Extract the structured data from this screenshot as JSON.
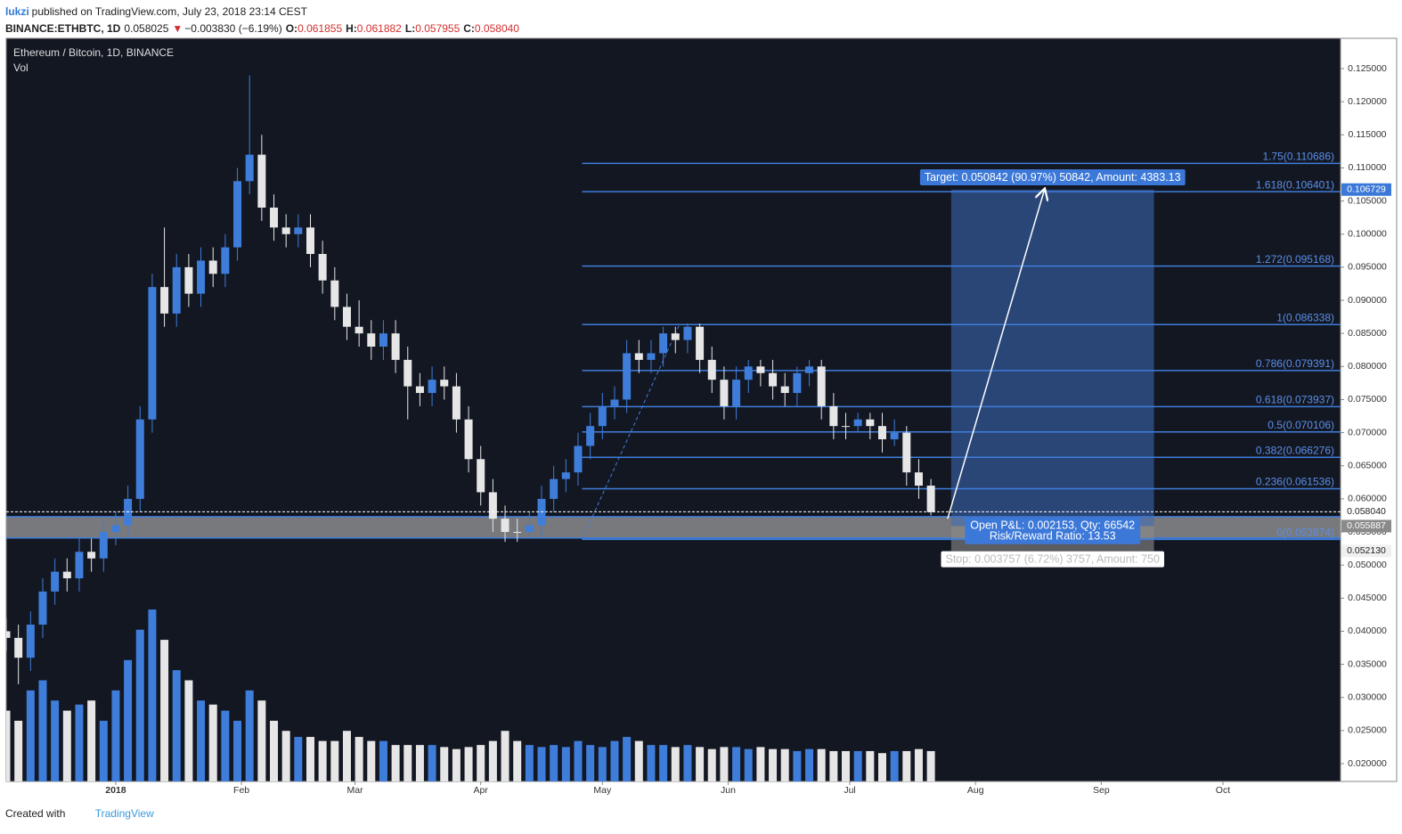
{
  "header": {
    "author": "lukzi",
    "published": "published on TradingView.com, July 23, 2018 23:14 CEST",
    "symbol": "BINANCE:ETHBTC, 1D",
    "price": "0.058025",
    "change": "−0.003830 (−6.19%)",
    "ohlc": [
      {
        "key": "O:",
        "value": "0.061855"
      },
      {
        "key": "H:",
        "value": "0.061882"
      },
      {
        "key": "L:",
        "value": "0.057955"
      },
      {
        "key": "C:",
        "value": "0.058040"
      }
    ]
  },
  "footer": {
    "created": "Created with",
    "brand": "TradingView"
  },
  "chart_data": {
    "type": "candlestick",
    "title": "Ethereum / Bitcoin, 1D, BINANCE",
    "volume_title": "Vol",
    "up_color": "#3f7ddb",
    "down_color": "#e6e6e6",
    "xlim": [
      -27,
      302
    ],
    "xticks": [
      {
        "value": 0,
        "label": "2018"
      },
      {
        "value": 31,
        "label": "Feb"
      },
      {
        "value": 59,
        "label": "Mar"
      },
      {
        "value": 90,
        "label": "Apr"
      },
      {
        "value": 120,
        "label": "May"
      },
      {
        "value": 151,
        "label": "Jun"
      },
      {
        "value": 181,
        "label": "Jul"
      },
      {
        "value": 212,
        "label": "Aug"
      },
      {
        "value": 243,
        "label": "Sep"
      },
      {
        "value": 273,
        "label": "Oct"
      }
    ],
    "ylim": [
      0.01731,
      0.12958
    ],
    "yticks": [
      {
        "value": 0.02,
        "label": "0.020000"
      },
      {
        "value": 0.025,
        "label": "0.025000"
      },
      {
        "value": 0.03,
        "label": "0.030000"
      },
      {
        "value": 0.035,
        "label": "0.035000"
      },
      {
        "value": 0.04,
        "label": "0.040000"
      },
      {
        "value": 0.045,
        "label": "0.045000"
      },
      {
        "value": 0.05,
        "label": "0.050000"
      },
      {
        "value": 0.055,
        "label": "0.055000"
      },
      {
        "value": 0.06,
        "label": "0.060000"
      },
      {
        "value": 0.065,
        "label": "0.065000"
      },
      {
        "value": 0.07,
        "label": "0.070000"
      },
      {
        "value": 0.075,
        "label": "0.075000"
      },
      {
        "value": 0.08,
        "label": "0.080000"
      },
      {
        "value": 0.085,
        "label": "0.085000"
      },
      {
        "value": 0.09,
        "label": "0.090000"
      },
      {
        "value": 0.095,
        "label": "0.095000"
      },
      {
        "value": 0.1,
        "label": "0.100000"
      },
      {
        "value": 0.105,
        "label": "0.105000"
      },
      {
        "value": 0.11,
        "label": "0.110000"
      },
      {
        "value": 0.115,
        "label": "0.115000"
      },
      {
        "value": 0.12,
        "label": "0.120000"
      },
      {
        "value": 0.125,
        "label": "0.125000"
      }
    ],
    "x": [
      -27,
      -24,
      -21,
      -18,
      -15,
      -12,
      -9,
      -6,
      -3,
      0,
      3,
      6,
      9,
      12,
      15,
      18,
      21,
      24,
      27,
      30,
      33,
      36,
      39,
      42,
      45,
      48,
      51,
      54,
      57,
      60,
      63,
      66,
      69,
      72,
      75,
      78,
      81,
      84,
      87,
      90,
      93,
      96,
      99,
      102,
      105,
      108,
      111,
      114,
      117,
      120,
      123,
      126,
      129,
      132,
      135,
      138,
      141,
      144,
      147,
      150,
      153,
      156,
      159,
      162,
      165,
      168,
      171,
      174,
      177,
      180,
      183,
      186,
      189,
      192,
      195,
      198,
      201
    ],
    "open": [
      0.04,
      0.039,
      0.036,
      0.041,
      0.046,
      0.049,
      0.048,
      0.052,
      0.051,
      0.055,
      0.056,
      0.06,
      0.072,
      0.092,
      0.088,
      0.095,
      0.091,
      0.096,
      0.094,
      0.098,
      0.108,
      0.112,
      0.104,
      0.101,
      0.1,
      0.101,
      0.097,
      0.093,
      0.089,
      0.086,
      0.085,
      0.083,
      0.085,
      0.081,
      0.077,
      0.076,
      0.078,
      0.077,
      0.072,
      0.066,
      0.061,
      0.057,
      0.055,
      0.055,
      0.056,
      0.06,
      0.063,
      0.064,
      0.068,
      0.071,
      0.074,
      0.075,
      0.082,
      0.081,
      0.082,
      0.085,
      0.084,
      0.086,
      0.081,
      0.078,
      0.074,
      0.078,
      0.08,
      0.079,
      0.077,
      0.076,
      0.079,
      0.08,
      0.074,
      0.071,
      0.071,
      0.072,
      0.071,
      0.069,
      0.07,
      0.064,
      0.062
    ],
    "high": [
      0.042,
      0.041,
      0.043,
      0.048,
      0.051,
      0.051,
      0.054,
      0.054,
      0.057,
      0.058,
      0.062,
      0.074,
      0.094,
      0.101,
      0.097,
      0.097,
      0.098,
      0.098,
      0.1,
      0.11,
      0.124,
      0.115,
      0.106,
      0.103,
      0.103,
      0.103,
      0.099,
      0.095,
      0.091,
      0.09,
      0.087,
      0.087,
      0.087,
      0.083,
      0.079,
      0.08,
      0.08,
      0.079,
      0.074,
      0.068,
      0.063,
      0.059,
      0.057,
      0.058,
      0.062,
      0.065,
      0.066,
      0.07,
      0.073,
      0.076,
      0.077,
      0.084,
      0.084,
      0.084,
      0.086,
      0.086,
      0.0865,
      0.0865,
      0.083,
      0.08,
      0.08,
      0.081,
      0.081,
      0.081,
      0.079,
      0.08,
      0.081,
      0.081,
      0.076,
      0.073,
      0.073,
      0.073,
      0.073,
      0.072,
      0.071,
      0.066,
      0.063
    ],
    "low": [
      0.037,
      0.032,
      0.034,
      0.039,
      0.044,
      0.046,
      0.046,
      0.049,
      0.049,
      0.053,
      0.054,
      0.058,
      0.07,
      0.086,
      0.086,
      0.089,
      0.089,
      0.092,
      0.092,
      0.096,
      0.106,
      0.102,
      0.099,
      0.098,
      0.098,
      0.095,
      0.091,
      0.087,
      0.084,
      0.083,
      0.081,
      0.081,
      0.079,
      0.072,
      0.074,
      0.074,
      0.075,
      0.07,
      0.064,
      0.059,
      0.055,
      0.0535,
      0.0535,
      0.054,
      0.054,
      0.058,
      0.061,
      0.062,
      0.066,
      0.069,
      0.072,
      0.073,
      0.079,
      0.079,
      0.08,
      0.082,
      0.082,
      0.079,
      0.076,
      0.072,
      0.072,
      0.076,
      0.077,
      0.075,
      0.074,
      0.074,
      0.077,
      0.072,
      0.069,
      0.069,
      0.07,
      0.069,
      0.067,
      0.068,
      0.062,
      0.06,
      0.0575
    ],
    "close": [
      0.039,
      0.036,
      0.041,
      0.046,
      0.049,
      0.048,
      0.052,
      0.051,
      0.055,
      0.056,
      0.06,
      0.072,
      0.092,
      0.088,
      0.095,
      0.091,
      0.096,
      0.094,
      0.098,
      0.108,
      0.112,
      0.104,
      0.101,
      0.1,
      0.101,
      0.097,
      0.093,
      0.089,
      0.086,
      0.085,
      0.083,
      0.085,
      0.081,
      0.077,
      0.076,
      0.078,
      0.077,
      0.072,
      0.066,
      0.061,
      0.057,
      0.055,
      0.055,
      0.056,
      0.06,
      0.063,
      0.064,
      0.068,
      0.071,
      0.074,
      0.075,
      0.082,
      0.081,
      0.082,
      0.085,
      0.084,
      0.086,
      0.081,
      0.078,
      0.074,
      0.078,
      0.08,
      0.079,
      0.077,
      0.076,
      0.079,
      0.08,
      0.074,
      0.071,
      0.071,
      0.072,
      0.071,
      0.069,
      0.07,
      0.064,
      0.062,
      0.058
    ],
    "vlim": [
      0,
      100
    ],
    "volume": [
      35,
      30,
      45,
      50,
      40,
      35,
      38,
      40,
      30,
      45,
      60,
      75,
      85,
      70,
      55,
      50,
      40,
      38,
      35,
      30,
      45,
      40,
      30,
      25,
      22,
      22,
      20,
      20,
      25,
      22,
      20,
      20,
      18,
      18,
      18,
      18,
      17,
      16,
      17,
      18,
      20,
      25,
      20,
      18,
      17,
      18,
      17,
      20,
      18,
      17,
      20,
      22,
      20,
      18,
      18,
      17,
      18,
      17,
      16,
      17,
      17,
      16,
      17,
      16,
      16,
      15,
      16,
      16,
      15,
      15,
      15,
      15,
      14,
      15,
      15,
      16,
      15
    ],
    "support_zone": [
      0.0541,
      0.0573
    ],
    "fib": {
      "x": [
        115,
        302
      ],
      "start": {
        "x": 115,
        "value": 0.053874
      },
      "end": {
        "x": 139,
        "value": 0.086338
      },
      "color": "#3f7ddb",
      "levels": [
        {
          "value": 0.110686,
          "label": "1.75(0.110686)"
        },
        {
          "value": 0.106401,
          "label": "1.618(0.106401)"
        },
        {
          "value": 0.095168,
          "label": "1.272(0.095168)"
        },
        {
          "value": 0.086338,
          "label": "1(0.086338)"
        },
        {
          "value": 0.079391,
          "label": "0.786(0.079391)"
        },
        {
          "value": 0.073937,
          "label": "0.618(0.073937)"
        },
        {
          "value": 0.070106,
          "label": "0.5(0.070106)"
        },
        {
          "value": 0.066276,
          "label": "0.382(0.066276)"
        },
        {
          "value": 0.061536,
          "label": "0.236(0.061536)"
        },
        {
          "value": 0.053874,
          "label": "0(0.053874)"
        }
      ]
    },
    "last_price": {
      "value": 0.05804,
      "label": "0.058040"
    },
    "position": {
      "x": [
        206,
        256
      ],
      "target": {
        "value": 0.106729,
        "label": "0.106729"
      },
      "entry": {
        "value": 0.055887,
        "label": "0.055887"
      },
      "stop": {
        "value": 0.05213,
        "label": "0.052130"
      },
      "target_text": "Target: 0.050842 (90.97%) 50842, Amount: 4383.13",
      "pnl_text": "Open P&L: 0.002153, Qty: 66542",
      "rr_text": "Risk/Reward Ratio: 13.53",
      "stop_text": "Stop: 0.003757 (6.72%) 3757, Amount: 750"
    }
  }
}
